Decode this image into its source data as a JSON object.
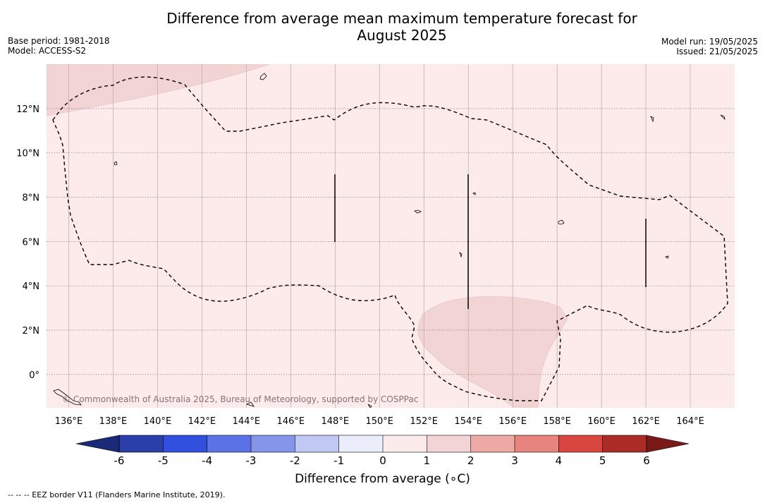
{
  "title_line1": "Difference from average mean maximum temperature forecast for",
  "title_line2": "August 2025",
  "base_period": "Base period: 1981-2018",
  "model": "Model: ACCESS-S2",
  "model_run": "Model run: 19/05/2025",
  "issued": "Issued: 21/05/2025",
  "copyright": "© Commonwealth of Australia 2025, Bureau of Meteorology, supported by COSPPac",
  "lon_labels": [
    "136°E",
    "138°E",
    "140°E",
    "142°E",
    "144°E",
    "146°E",
    "148°E",
    "150°E",
    "152°E",
    "154°E",
    "156°E",
    "158°E",
    "160°E",
    "162°E",
    "164°E"
  ],
  "lat_labels": [
    "12°N",
    "10°N",
    "8°N",
    "6°N",
    "4°N",
    "2°N",
    "0°"
  ],
  "colorbar": {
    "ticks": [
      "-6",
      "-5",
      "-4",
      "-3",
      "-2",
      "-1",
      "0",
      "1",
      "2",
      "3",
      "4",
      "5",
      "6"
    ],
    "colors": [
      "#2a3faa",
      "#3050dd",
      "#5a72e6",
      "#8596ea",
      "#c0c8f4",
      "#ebedfb",
      "#fcebeb",
      "#f3d4d4",
      "#edaaa5",
      "#e6847d",
      "#d94640",
      "#ab2b27"
    ],
    "under_color": "#1a2a78",
    "over_color": "#7a1a18",
    "label": "Difference from average (∘C)"
  },
  "map": {
    "background_color": "#fcebea",
    "warm_region_color": "#f3d4d4",
    "lon_range": [
      135,
      166
    ],
    "lat_range": [
      -1.5,
      14
    ]
  },
  "footnote": "--  --  -- EEZ border V11 (Flanders Marine Institute, 2019)."
}
